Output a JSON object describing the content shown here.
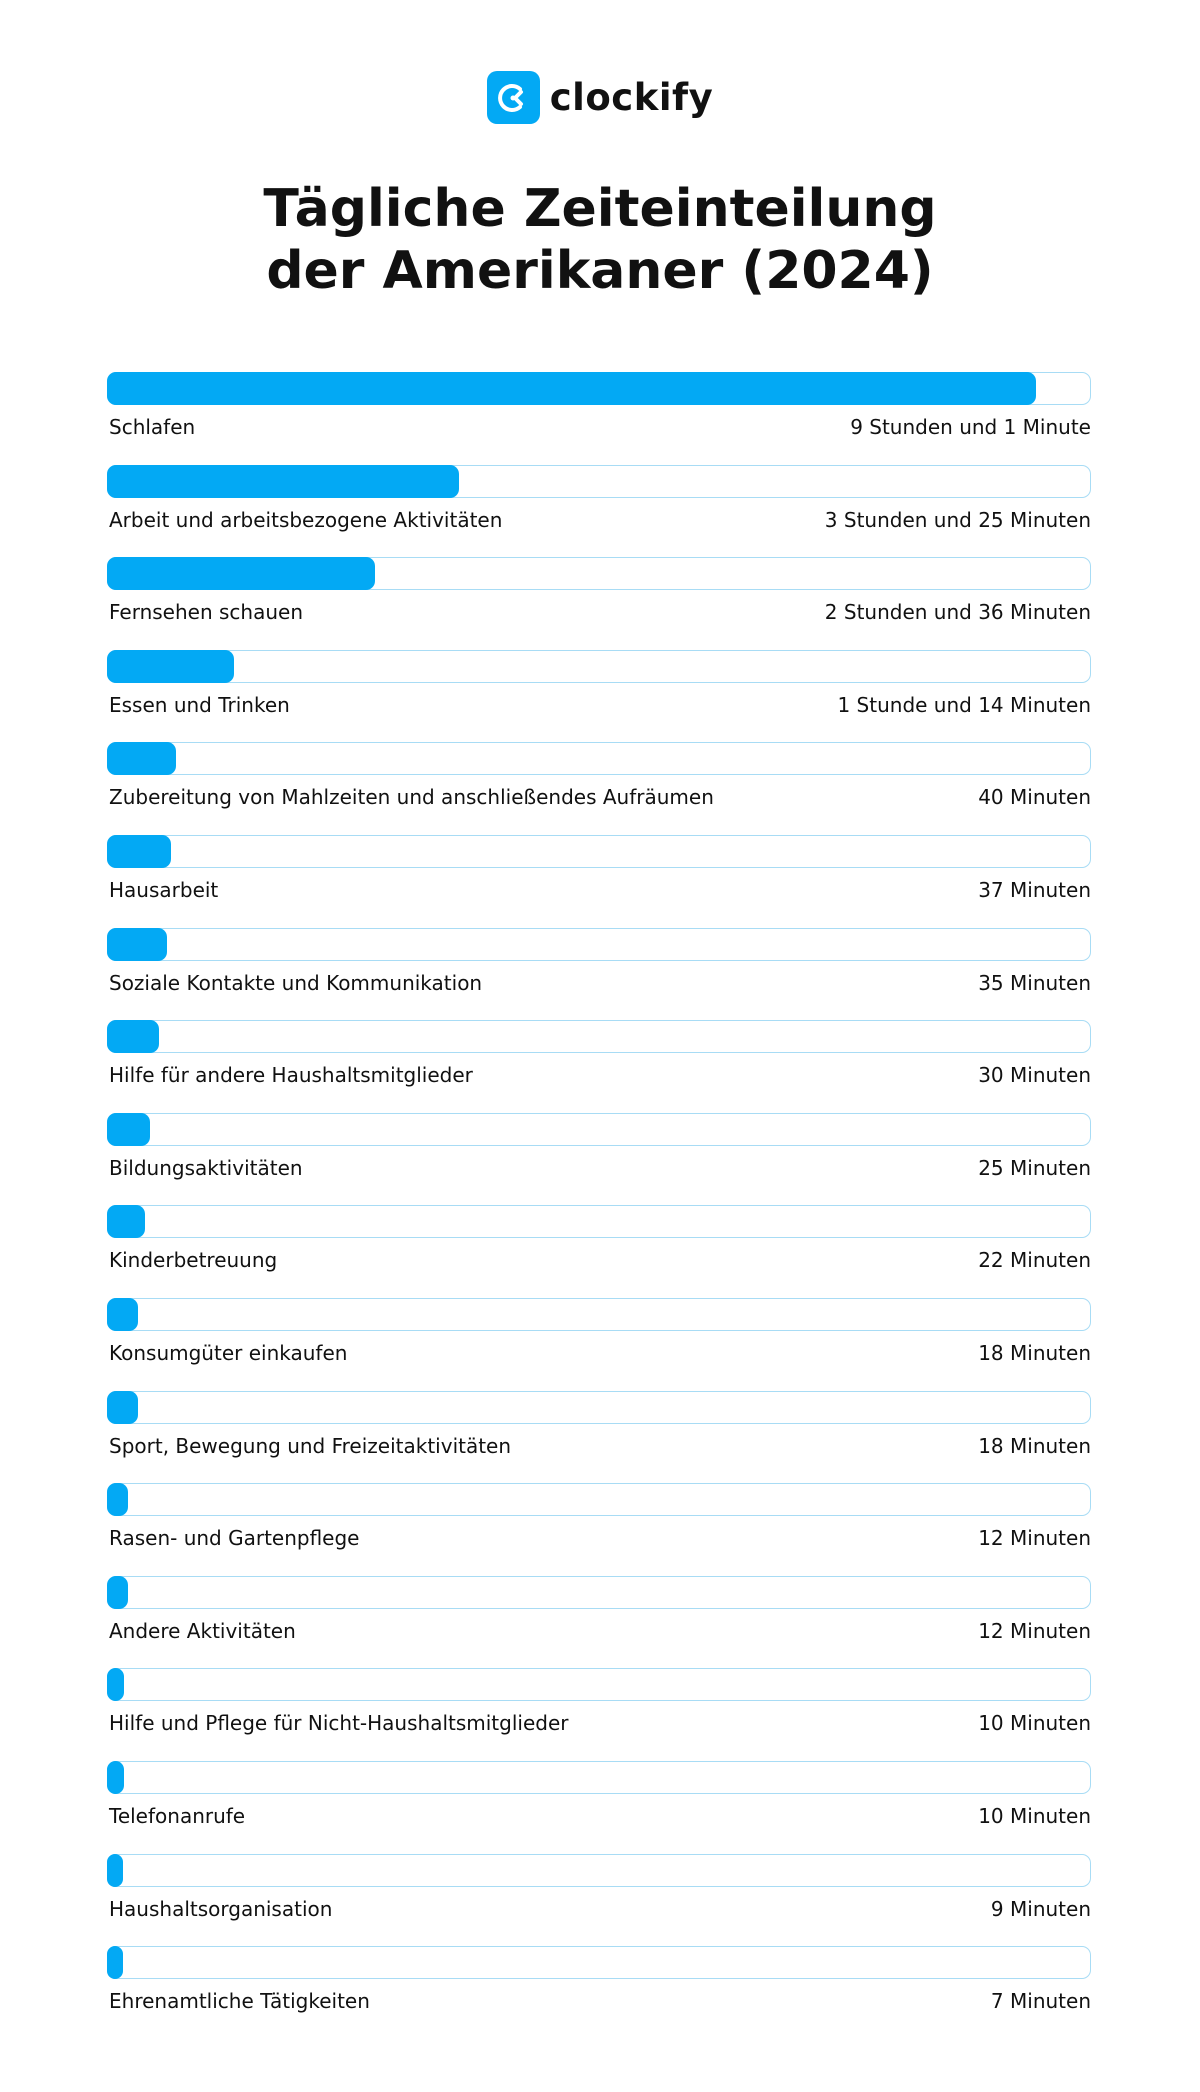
{
  "brand": {
    "name": "clockify",
    "color": "#03a9f4",
    "icon": "clockify-logo-icon"
  },
  "chart_data": {
    "type": "bar",
    "orientation": "horizontal",
    "title": "Tägliche Zeiteinteilung der Amerikaner (2024)",
    "bar_color": "#03a9f4",
    "track_border_color": "#a8dcf5",
    "unit": "minutes",
    "categories": [
      "Schlafen",
      "Arbeit und arbeitsbezogene Aktivitäten",
      "Fernsehen schauen",
      "Essen und Trinken",
      "Zubereitung von Mahlzeiten und anschließendes Aufräumen",
      "Hausarbeit",
      "Soziale Kontakte und Kommunikation",
      "Hilfe für andere Haushaltsmitglieder",
      "Bildungsaktivitäten",
      "Kinderbetreuung",
      "Konsumgüter einkaufen",
      "Sport, Bewegung und Freizeitaktivitäten",
      "Rasen- und Gartenpflege",
      "Andere Aktivitäten",
      "Hilfe und Pflege für Nicht-Haushaltsmitglieder",
      "Telefonanrufe",
      "Haushaltsorganisation",
      "Ehrenamtliche Tätigkeiten"
    ],
    "values": [
      541,
      205,
      156,
      74,
      40,
      37,
      35,
      30,
      25,
      22,
      18,
      18,
      12,
      12,
      10,
      10,
      9,
      7
    ],
    "value_labels": [
      "9 Stunden und 1 Minute",
      "3 Stunden und 25 Minuten",
      "2 Stunden und 36 Minuten",
      "1 Stunde und 14 Minuten",
      "40 Minuten",
      "37 Minuten",
      "35 Minuten",
      "30 Minuten",
      "25 Minuten",
      "22 Minuten",
      "18 Minuten",
      "18 Minuten",
      "12 Minuten",
      "12 Minuten",
      "10 Minuten",
      "10 Minuten",
      "9 Minuten",
      "7 Minuten"
    ],
    "xlim": [
      0,
      573
    ]
  }
}
